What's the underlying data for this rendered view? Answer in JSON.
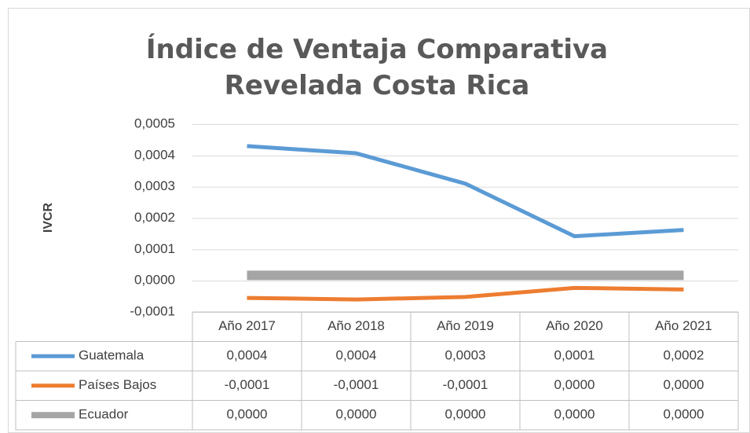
{
  "chart_data": {
    "type": "line",
    "title": "Índice de Ventaja Comparativa Revelada Costa Rica",
    "y_label": "IVCR",
    "categories": [
      "Año 2017",
      "Año 2018",
      "Año 2019",
      "Año 2020",
      "Año 2021"
    ],
    "series": [
      {
        "name": "Guatemala",
        "color": "#5b9bd5",
        "values": [
          0.00043,
          0.000407,
          0.00031,
          0.000142,
          0.000162
        ],
        "value_labels": [
          "0,0004",
          "0,0004",
          "0,0003",
          "0,0001",
          "0,0002"
        ]
      },
      {
        "name": "Países Bajos",
        "color": "#ed7d31",
        "values": [
          -5.5e-05,
          -6e-05,
          -5.2e-05,
          -2.3e-05,
          -2.8e-05
        ],
        "value_labels": [
          "-0,0001",
          "-0,0001",
          "-0,0001",
          "0,0000",
          "0,0000"
        ]
      },
      {
        "name": "Ecuador",
        "color": "#a5a5a5",
        "values": [
          1.7e-05,
          1.7e-05,
          1.7e-05,
          1.7e-05,
          1.7e-05
        ],
        "value_labels": [
          "0,0000",
          "0,0000",
          "0,0000",
          "0,0000",
          "0,0000"
        ]
      }
    ],
    "ylim": [
      -0.0001,
      0.0005
    ],
    "yticks": [
      {
        "value": -0.0001,
        "label": "-0,0001"
      },
      {
        "value": 0,
        "label": "0,0000"
      },
      {
        "value": 0.0001,
        "label": "0,0001"
      },
      {
        "value": 0.0002,
        "label": "0,0002"
      },
      {
        "value": 0.0003,
        "label": "0,0003"
      },
      {
        "value": 0.0004,
        "label": "0,0004"
      },
      {
        "value": 0.0005,
        "label": "0,0005"
      }
    ],
    "grid": true
  }
}
